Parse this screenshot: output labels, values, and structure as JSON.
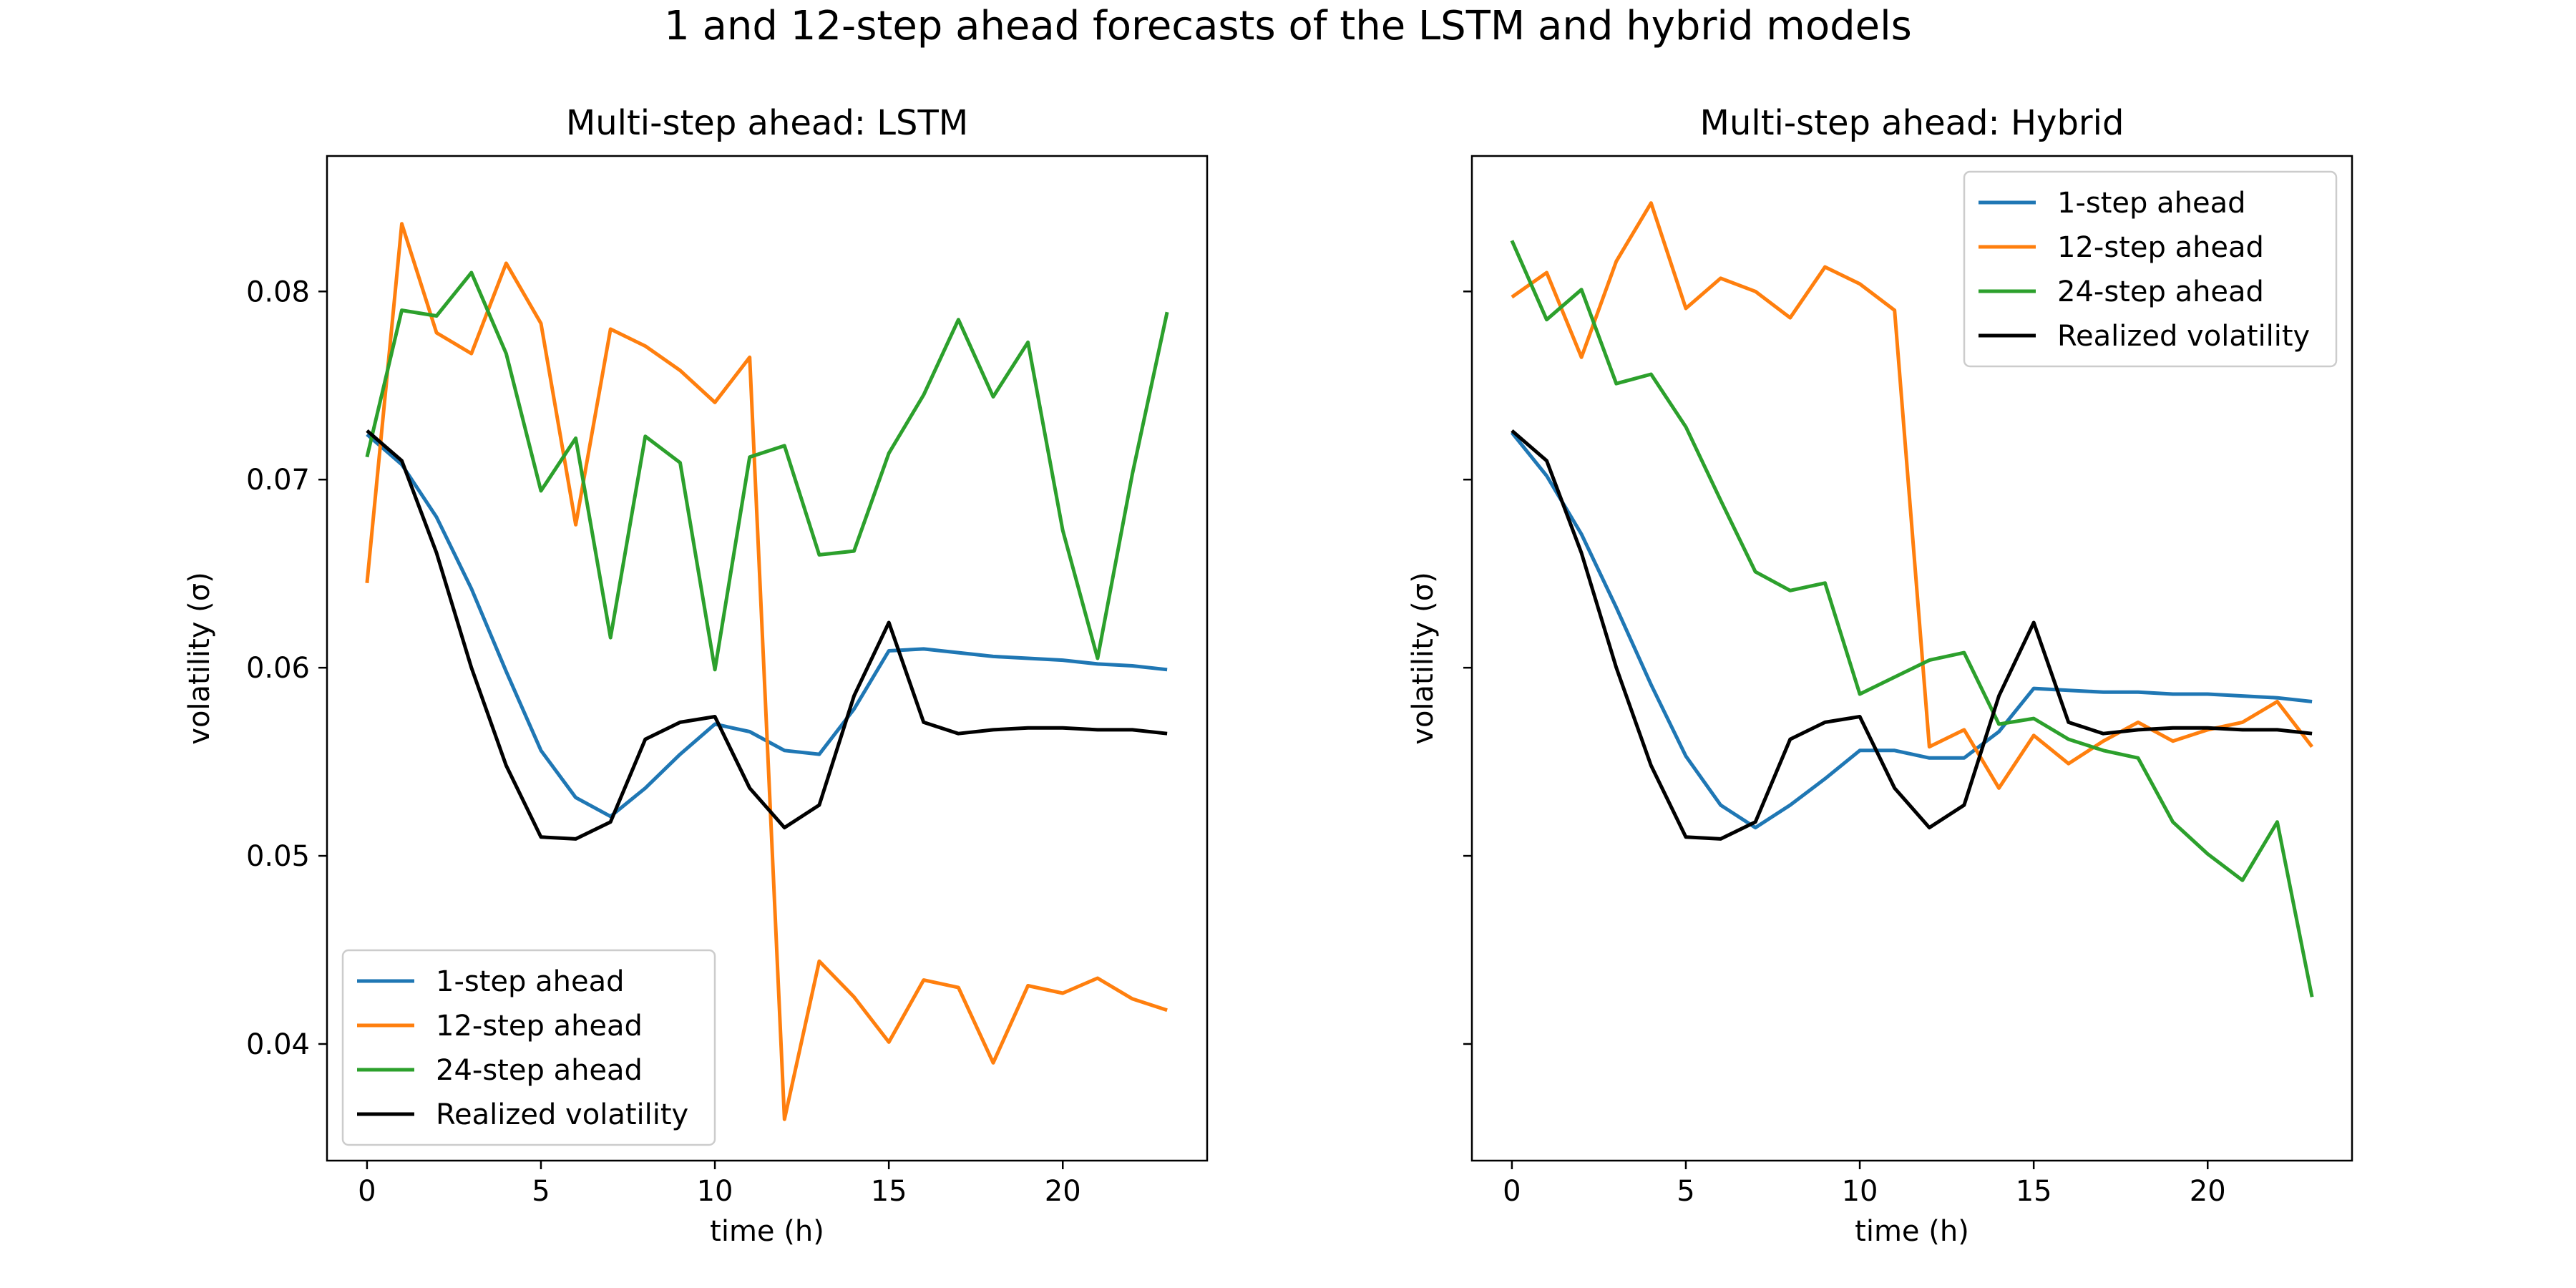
{
  "suptitle": "1 and 12-step ahead forecasts of the LSTM and hybrid models",
  "chart_data": [
    {
      "type": "line",
      "title": "Multi-step ahead: LSTM",
      "xlabel": "time (h)",
      "ylabel": "volatility (σ)",
      "xlim": [
        -1.15,
        24.15
      ],
      "ylim": [
        0.0338,
        0.0872
      ],
      "xticks": [
        0,
        5,
        10,
        15,
        20
      ],
      "yticks": [
        0.04,
        0.05,
        0.06,
        0.07,
        0.08
      ],
      "ytick_labels": [
        "0.04",
        "0.05",
        "0.06",
        "0.07",
        "0.08"
      ],
      "legend": "lower-left",
      "x": [
        0,
        1,
        2,
        3,
        4,
        5,
        6,
        7,
        8,
        9,
        10,
        11,
        12,
        13,
        14,
        15,
        16,
        17,
        18,
        19,
        20,
        21,
        22,
        23
      ],
      "series": [
        {
          "name": "1-step ahead",
          "color": "#1f77b4",
          "values": [
            0.0724,
            0.0708,
            0.068,
            0.0642,
            0.0598,
            0.0556,
            0.0531,
            0.0521,
            0.0536,
            0.0554,
            0.057,
            0.0566,
            0.0556,
            0.0554,
            0.0578,
            0.0609,
            0.061,
            0.0608,
            0.0606,
            0.0605,
            0.0604,
            0.0602,
            0.0601,
            0.0599
          ]
        },
        {
          "name": "12-step ahead",
          "color": "#ff7f0e",
          "values": [
            0.0645,
            0.0836,
            0.0778,
            0.0767,
            0.0815,
            0.0783,
            0.0676,
            0.078,
            0.0771,
            0.0758,
            0.0741,
            0.0765,
            0.036,
            0.0444,
            0.0425,
            0.0401,
            0.0434,
            0.043,
            0.039,
            0.0431,
            0.0427,
            0.0435,
            0.0424,
            0.0418
          ]
        },
        {
          "name": "24-step ahead",
          "color": "#2ca02c",
          "values": [
            0.0712,
            0.079,
            0.0787,
            0.081,
            0.0767,
            0.0694,
            0.0722,
            0.0616,
            0.0723,
            0.0709,
            0.0599,
            0.0712,
            0.0718,
            0.066,
            0.0662,
            0.0714,
            0.0745,
            0.0785,
            0.0744,
            0.0773,
            0.0673,
            0.0605,
            0.0703,
            0.0789
          ]
        },
        {
          "name": "Realized volatility",
          "color": "#000000",
          "values": [
            0.0726,
            0.071,
            0.0661,
            0.06,
            0.0548,
            0.051,
            0.0509,
            0.0518,
            0.0562,
            0.0571,
            0.0574,
            0.0536,
            0.0515,
            0.0527,
            0.0585,
            0.0624,
            0.0571,
            0.0565,
            0.0567,
            0.0568,
            0.0568,
            0.0567,
            0.0567,
            0.0565
          ]
        }
      ]
    },
    {
      "type": "line",
      "title": "Multi-step ahead: Hybrid",
      "xlabel": "time (h)",
      "ylabel": "volatility (σ)",
      "xlim": [
        -1.15,
        24.15
      ],
      "ylim": [
        0.0338,
        0.0872
      ],
      "xticks": [
        0,
        5,
        10,
        15,
        20
      ],
      "yticks": [
        0.04,
        0.05,
        0.06,
        0.07,
        0.08
      ],
      "ytick_labels": [
        "",
        "",
        "",
        "",
        ""
      ],
      "legend": "upper-right",
      "x": [
        0,
        1,
        2,
        3,
        4,
        5,
        6,
        7,
        8,
        9,
        10,
        11,
        12,
        13,
        14,
        15,
        16,
        17,
        18,
        19,
        20,
        21,
        22,
        23
      ],
      "series": [
        {
          "name": "1-step ahead",
          "color": "#1f77b4",
          "values": [
            0.0725,
            0.0702,
            0.0671,
            0.0632,
            0.0591,
            0.0553,
            0.0527,
            0.0515,
            0.0527,
            0.0541,
            0.0556,
            0.0556,
            0.0552,
            0.0552,
            0.0566,
            0.0589,
            0.0588,
            0.0587,
            0.0587,
            0.0586,
            0.0586,
            0.0585,
            0.0584,
            0.0582
          ]
        },
        {
          "name": "12-step ahead",
          "color": "#ff7f0e",
          "values": [
            0.0797,
            0.081,
            0.0765,
            0.0816,
            0.0847,
            0.0791,
            0.0807,
            0.08,
            0.0786,
            0.0813,
            0.0804,
            0.079,
            0.0558,
            0.0567,
            0.0536,
            0.0564,
            0.0549,
            0.0561,
            0.0571,
            0.0561,
            0.0567,
            0.0571,
            0.0582,
            0.0558
          ]
        },
        {
          "name": "24-step ahead",
          "color": "#2ca02c",
          "values": [
            0.0827,
            0.0785,
            0.0801,
            0.0751,
            0.0756,
            0.0728,
            0.0689,
            0.0651,
            0.0641,
            0.0645,
            0.0586,
            0.0595,
            0.0604,
            0.0608,
            0.057,
            0.0573,
            0.0562,
            0.0556,
            0.0552,
            0.0518,
            0.0501,
            0.0487,
            0.0518,
            0.0425
          ]
        },
        {
          "name": "Realized volatility",
          "color": "#000000",
          "values": [
            0.0726,
            0.071,
            0.0661,
            0.06,
            0.0548,
            0.051,
            0.0509,
            0.0518,
            0.0562,
            0.0571,
            0.0574,
            0.0536,
            0.0515,
            0.0527,
            0.0585,
            0.0624,
            0.0571,
            0.0565,
            0.0567,
            0.0568,
            0.0568,
            0.0567,
            0.0567,
            0.0565
          ]
        }
      ]
    }
  ]
}
